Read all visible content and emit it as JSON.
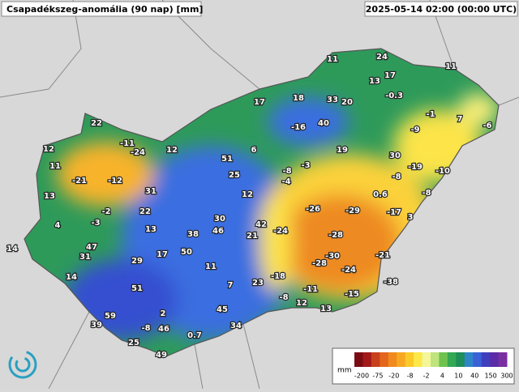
{
  "header": {
    "title": "Csapadékszeg-anomália (90 nap) [mm]",
    "timestamp": "2025-05-14 02:00 (00:00 UTC)"
  },
  "stations": [
    11,
    24,
    11,
    13,
    17,
    -0.3,
    17,
    18,
    33,
    20,
    22,
    -1,
    7,
    -6,
    -16,
    40,
    -9,
    12,
    -11,
    -24,
    12,
    6,
    19,
    30,
    11,
    51,
    -3,
    -8,
    -19,
    -10,
    -21,
    -12,
    25,
    -8,
    -4,
    13,
    31,
    -2,
    12,
    0.6,
    -8,
    22,
    -26,
    -29,
    -17,
    3,
    4,
    -3,
    13,
    30,
    42,
    38,
    46,
    21,
    -24,
    -28,
    14,
    47,
    31,
    17,
    50,
    -30,
    -21,
    29,
    11,
    -28,
    -24,
    14,
    -18,
    23,
    -38,
    51,
    7,
    -11,
    -8,
    -15,
    12,
    13,
    45,
    2,
    59,
    39,
    -8,
    46,
    0.7,
    34,
    25,
    49
  ],
  "legend": {
    "unit": "mm",
    "ticks": [
      -200,
      -75,
      -20,
      -8,
      -2,
      4,
      10,
      40,
      150,
      300
    ],
    "colors": [
      "#7a0c14",
      "#a31a1a",
      "#c8401c",
      "#e4661c",
      "#f08a1c",
      "#f7a823",
      "#fbc92a",
      "#fde84a",
      "#f4f69a",
      "#bfe37d",
      "#6fc24f",
      "#34a852",
      "#1e8e5a",
      "#2e86c8",
      "#3a62d6",
      "#3f3fbd",
      "#5a2ca8",
      "#7a2fa0"
    ]
  }
}
